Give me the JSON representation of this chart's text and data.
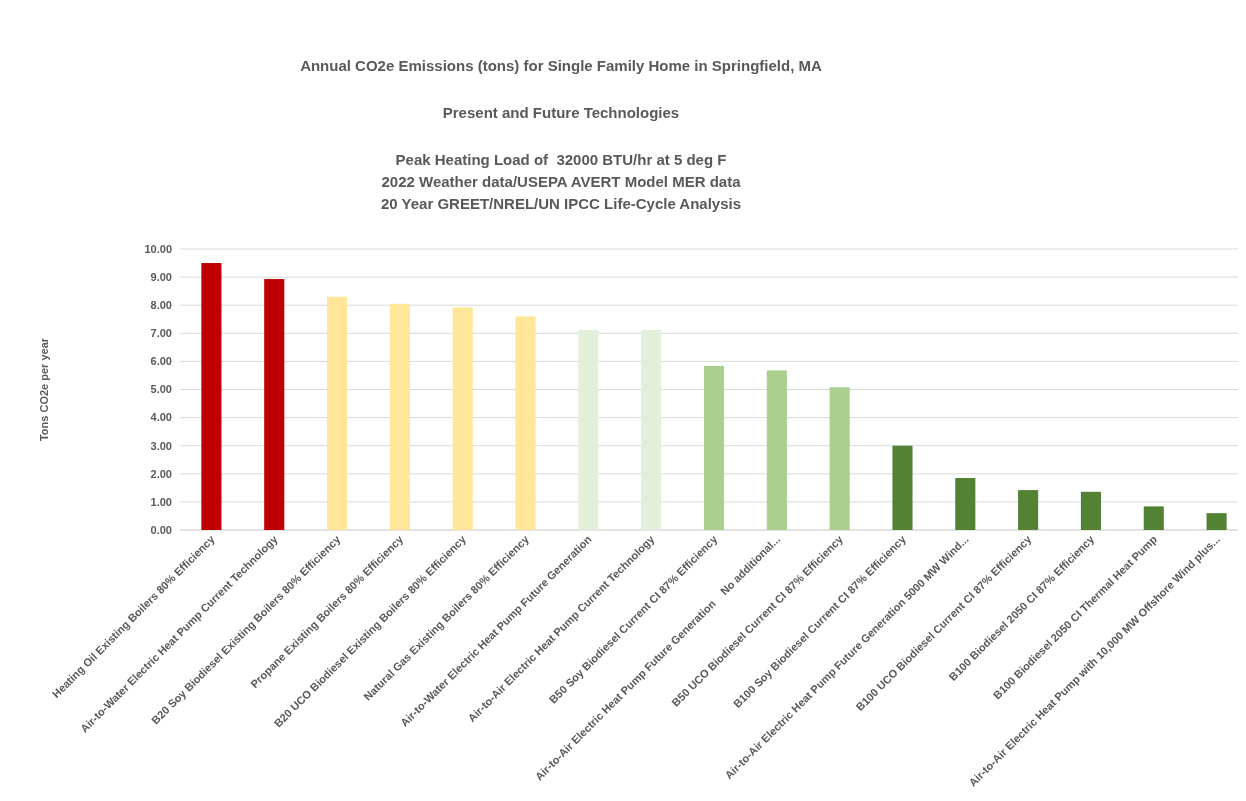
{
  "chart_data": {
    "type": "bar",
    "title": "Annual CO2e Emissions (tons) for Single Family Home in Springfield, MA",
    "subtitle": "Present and Future Technologies\n\nPeak Heating Load of  32000 BTU/hr at 5 deg F\n2022 Weather data/USEPA AVERT Model MER data\n20 Year GREET/NREL/UN IPCC Life-Cycle Analysis",
    "ylabel": "Tons CO2e per year",
    "categories": [
      "Heating Oil Existing Boilers 80% Efficiency",
      "Air-to-Water Electric Heat Pump Current Technology",
      "B20 Soy Biodiesel Existing Boilers 80% Efficiency",
      "Propane Existing Boilers 80% Efficiency",
      "B20 UCO Biodiesel Existing Boilers 80% Efficiency",
      "Natural Gas Existing Boilers 80% Efficiency",
      "Air-to-Water Electric Heat Pump Future Generation",
      "Air-to-Air Electric Heat Pump Current Technology",
      "B50 Soy Biodiesel Current CI 87% Efficiency",
      "Air-to-Air Electric Heat Pump Future Generation    No additional...",
      "B50 UCO Biodiesel Current CI 87% Efficiency",
      "B100 Soy Biodiesel Current CI 87% Efficiency",
      "Air-to-Air Electric Heat Pump Future Generation 5000 MW Wind...",
      "B100 UCO Biodiesel Current CI 87% Efficiency",
      "B100 Biodiesel 2050 CI 87% Efficiency",
      "B100 Biodiesel 2050 CI Thermal Heat Pump",
      "Air-to-Air Electric Heat Pump with 10,000 MW Offshore Wind plus..."
    ],
    "values": [
      9.5,
      8.93,
      8.3,
      8.05,
      7.92,
      7.6,
      7.12,
      7.12,
      5.84,
      5.68,
      5.08,
      3.0,
      1.85,
      1.42,
      1.36,
      0.84,
      0.6
    ],
    "colors": [
      "#c00000",
      "#c00000",
      "#ffe699",
      "#ffe699",
      "#ffe699",
      "#ffe699",
      "#e2efda",
      "#e2efda",
      "#a9d08e",
      "#a9d08e",
      "#a9d08e",
      "#548235",
      "#548235",
      "#548235",
      "#548235",
      "#548235",
      "#548235"
    ],
    "ylim": [
      0,
      10
    ],
    "yticks": [
      {
        "value": 0,
        "label": "0.00"
      },
      {
        "value": 1,
        "label": "1.00"
      },
      {
        "value": 2,
        "label": "2.00"
      },
      {
        "value": 3,
        "label": "3.00"
      },
      {
        "value": 4,
        "label": "4.00"
      },
      {
        "value": 5,
        "label": "5.00"
      },
      {
        "value": 6,
        "label": "6.00"
      },
      {
        "value": 7,
        "label": "7.00"
      },
      {
        "value": 8,
        "label": "8.00"
      },
      {
        "value": 9,
        "label": "9.00"
      },
      {
        "value": 10,
        "label": "10.00"
      }
    ],
    "grid": "y"
  }
}
